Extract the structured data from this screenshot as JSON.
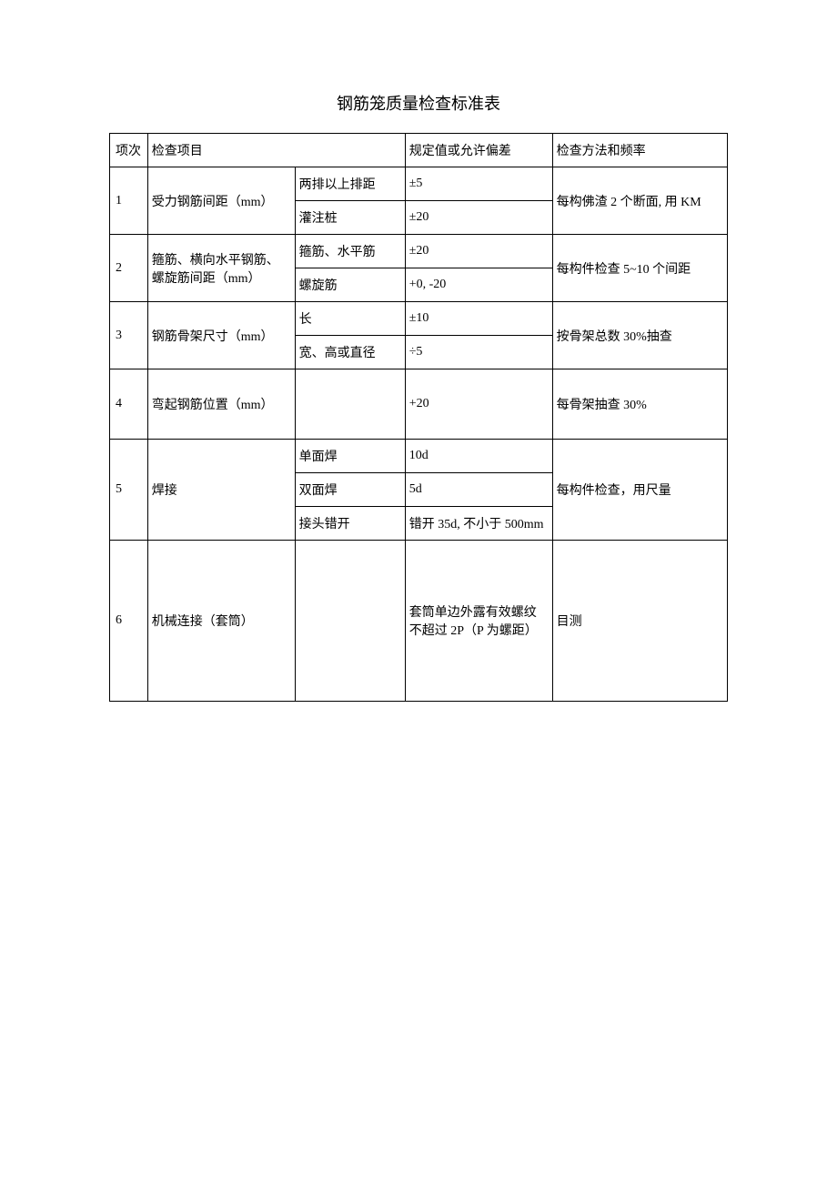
{
  "title": "钢筋笼质量检查标准表",
  "headers": {
    "idx": "项次",
    "item": "检查项目",
    "value": "规定值或允许偏差",
    "method": "检查方法和频率"
  },
  "rows": {
    "r1": {
      "idx": "1",
      "item": "受力钢筋间距（mm）",
      "sub1": "两排以上排距",
      "val1": "±5",
      "sub2": "灌注桩",
      "val2": "±20",
      "method": "每构佛渣 2 个断面, 用 KM"
    },
    "r2": {
      "idx": "2",
      "item": "箍筋、横向水平钢筋、螺旋筋间距（mm）",
      "sub1": "箍筋、水平筋",
      "val1": "±20",
      "sub2": "螺旋筋",
      "val2": "+0, -20",
      "method": "每构件检查 5~10 个间距"
    },
    "r3": {
      "idx": "3",
      "item": "钢筋骨架尺寸（mm）",
      "sub1": "长",
      "val1": "±10",
      "sub2": "宽、高或直径",
      "val2": "÷5",
      "method": "按骨架总数 30%抽查"
    },
    "r4": {
      "idx": "4",
      "item": "弯起钢筋位置（mm）",
      "sub": "",
      "val": "+20",
      "method": "每骨架抽查 30%"
    },
    "r5": {
      "idx": "5",
      "item": "焊接",
      "sub1": "单面焊",
      "val1": "10d",
      "sub2": "双面焊",
      "val2": "5d",
      "sub3": "接头错开",
      "val3": "错开 35d, 不小于 500mm",
      "method": "每构件检查，用尺量"
    },
    "r6": {
      "idx": "6",
      "item": "机械连接（套筒）",
      "sub": "",
      "val": "套筒单边外露有效螺纹不超过 2P（P 为螺距）",
      "method": "目测"
    }
  },
  "style": {
    "font_family": "SimSun",
    "title_fontsize": 18,
    "cell_fontsize": 14,
    "border_color": "#000000",
    "background_color": "#ffffff",
    "col_widths": {
      "idx": 30,
      "item": 150,
      "sub": 110,
      "value": 150,
      "method": 180
    }
  }
}
